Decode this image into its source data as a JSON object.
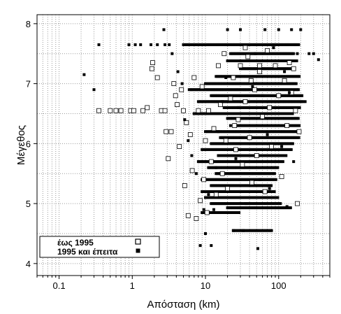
{
  "chart_data": {
    "type": "scatter",
    "title": "",
    "xlabel": "Απόσταση (km)",
    "ylabel": "Μέγεθος",
    "xscale": "log",
    "xlim": [
      0.05,
      500
    ],
    "ylim": [
      3.8,
      8.15
    ],
    "xticks": [
      {
        "value": 0.1,
        "label": "0.1"
      },
      {
        "value": 1,
        "label": "1"
      },
      {
        "value": 10,
        "label": "10"
      },
      {
        "value": 100,
        "label": "100"
      }
    ],
    "yticks": [
      {
        "value": 4,
        "label": "4"
      },
      {
        "value": 5,
        "label": "5"
      },
      {
        "value": 6,
        "label": "6"
      },
      {
        "value": 7,
        "label": "7"
      },
      {
        "value": 8,
        "label": "8"
      }
    ],
    "grid": true,
    "legend_position": "bottom-left",
    "series": [
      {
        "name": "έως 1995",
        "marker": "open-square",
        "color": "#000000",
        "points": [
          [
            0.35,
            6.55
          ],
          [
            0.5,
            6.55
          ],
          [
            0.6,
            6.55
          ],
          [
            0.7,
            6.55
          ],
          [
            0.95,
            6.55
          ],
          [
            1.05,
            6.55
          ],
          [
            1.4,
            6.55
          ],
          [
            1.6,
            6.6
          ],
          [
            1.85,
            7.25
          ],
          [
            1.9,
            7.35
          ],
          [
            2.2,
            7.1
          ],
          [
            2.5,
            6.55
          ],
          [
            2.8,
            6.55
          ],
          [
            2.9,
            6.2
          ],
          [
            3.1,
            5.75
          ],
          [
            3.4,
            6.2
          ],
          [
            3.7,
            7.0
          ],
          [
            3.9,
            6.8
          ],
          [
            4.1,
            6.65
          ],
          [
            4.4,
            5.95
          ],
          [
            4.7,
            6.9
          ],
          [
            5.0,
            6.55
          ],
          [
            5.2,
            5.3
          ],
          [
            5.5,
            6.35
          ],
          [
            5.8,
            4.8
          ],
          [
            6.2,
            6.15
          ],
          [
            6.6,
            5.55
          ],
          [
            7.0,
            7.1
          ],
          [
            7.5,
            4.75
          ],
          [
            8.0,
            6.55
          ],
          [
            8.5,
            5.05
          ],
          [
            9.0,
            6.95
          ],
          [
            9.5,
            5.4
          ],
          [
            10.0,
            6.05
          ],
          [
            10.5,
            4.85
          ],
          [
            11.0,
            6.55
          ],
          [
            12.0,
            5.7
          ],
          [
            13.0,
            6.25
          ],
          [
            14.0,
            5.15
          ],
          [
            15.0,
            7.3
          ],
          [
            16.0,
            6.65
          ],
          [
            17.0,
            5.5
          ],
          [
            18.0,
            7.5
          ],
          [
            19.0,
            6.05
          ],
          [
            20.0,
            5.25
          ],
          [
            22.0,
            6.75
          ],
          [
            24.0,
            7.1
          ],
          [
            26.0,
            5.9
          ],
          [
            28.0,
            6.4
          ],
          [
            30.0,
            7.3
          ],
          [
            32.0,
            5.65
          ],
          [
            35.0,
            6.7
          ],
          [
            38.0,
            7.45
          ],
          [
            40.0,
            6.1
          ],
          [
            43.0,
            5.35
          ],
          [
            47.0,
            6.9
          ],
          [
            50.0,
            5.8
          ],
          [
            55.0,
            7.2
          ],
          [
            60.0,
            6.45
          ],
          [
            65.0,
            5.2
          ],
          [
            70.0,
            7.55
          ],
          [
            75.0,
            6.6
          ],
          [
            80.0,
            5.95
          ],
          [
            90.0,
            7.3
          ],
          [
            100.0,
            6.8
          ],
          [
            110.0,
            5.45
          ],
          [
            120.0,
            7.05
          ],
          [
            130.0,
            6.3
          ],
          [
            140.0,
            7.35
          ],
          [
            150.0,
            6.85
          ],
          [
            160.0,
            7.25
          ],
          [
            170.0,
            6.55
          ],
          [
            180.0,
            5.0
          ],
          [
            190.0,
            6.2
          ],
          [
            35.0,
            7.6
          ],
          [
            42.0,
            7.05
          ],
          [
            55.0,
            7.3
          ],
          [
            25.0,
            6.3
          ]
        ]
      },
      {
        "name": "1995 και έπειτα",
        "marker": "filled-square",
        "color": "#000000",
        "points": [
          [
            0.22,
            7.15
          ],
          [
            0.3,
            6.9
          ],
          [
            0.35,
            7.65
          ],
          [
            0.9,
            7.65
          ],
          [
            1.1,
            7.65
          ],
          [
            1.3,
            7.65
          ],
          [
            1.8,
            7.65
          ],
          [
            2.2,
            7.65
          ],
          [
            2.8,
            7.65
          ],
          [
            3.2,
            7.65
          ],
          [
            2.7,
            7.9
          ],
          [
            3.5,
            7.5
          ],
          [
            4.2,
            7.2
          ],
          [
            4.8,
            7.0
          ],
          [
            5.2,
            6.4
          ],
          [
            5.8,
            6.05
          ],
          [
            6.5,
            5.8
          ],
          [
            7.5,
            5.5
          ],
          [
            8.5,
            4.3
          ],
          [
            9.5,
            4.9
          ],
          [
            10.0,
            4.5
          ],
          [
            11.0,
            5.15
          ],
          [
            12.0,
            4.3
          ],
          [
            13.0,
            4.9
          ],
          [
            14.0,
            5.6
          ],
          [
            15.0,
            6.2
          ],
          [
            17.0,
            6.7
          ],
          [
            19.0,
            7.1
          ],
          [
            20.0,
            7.9
          ],
          [
            22.0,
            6.3
          ],
          [
            24.0,
            4.55
          ],
          [
            26.0,
            5.75
          ],
          [
            28.0,
            6.6
          ],
          [
            30.0,
            7.9
          ],
          [
            33.0,
            4.55
          ],
          [
            36.0,
            5.0
          ],
          [
            40.0,
            6.2
          ],
          [
            44.0,
            6.95
          ],
          [
            48.0,
            7.5
          ],
          [
            52.0,
            4.25
          ],
          [
            56.0,
            5.4
          ],
          [
            60.0,
            6.8
          ],
          [
            65.0,
            7.9
          ],
          [
            70.0,
            6.15
          ],
          [
            75.0,
            5.25
          ],
          [
            80.0,
            4.55
          ],
          [
            85.0,
            7.6
          ],
          [
            90.0,
            6.6
          ],
          [
            100.0,
            7.9
          ],
          [
            110.0,
            5.95
          ],
          [
            120.0,
            7.2
          ],
          [
            130.0,
            4.95
          ],
          [
            140.0,
            6.85
          ],
          [
            150.0,
            7.9
          ],
          [
            160.0,
            5.7
          ],
          [
            180.0,
            7.5
          ],
          [
            200.0,
            7.9
          ],
          [
            230.0,
            6.7
          ],
          [
            260.0,
            7.5
          ],
          [
            300.0,
            7.5
          ],
          [
            350.0,
            7.4
          ]
        ]
      }
    ],
    "bands": {
      "series_index": 1,
      "rows": [
        {
          "y": 7.65,
          "x_from": 5,
          "x_to": 190
        },
        {
          "y": 7.5,
          "x_from": 22,
          "x_to": 160
        },
        {
          "y": 7.38,
          "x_from": 20,
          "x_to": 180
        },
        {
          "y": 7.25,
          "x_from": 30,
          "x_to": 170
        },
        {
          "y": 7.12,
          "x_from": 14,
          "x_to": 200
        },
        {
          "y": 7.0,
          "x_from": 10,
          "x_to": 180
        },
        {
          "y": 6.9,
          "x_from": 6,
          "x_to": 190
        },
        {
          "y": 6.8,
          "x_from": 12,
          "x_to": 210
        },
        {
          "y": 6.7,
          "x_from": 8,
          "x_to": 220
        },
        {
          "y": 6.6,
          "x_from": 18,
          "x_to": 200
        },
        {
          "y": 6.5,
          "x_from": 7,
          "x_to": 160
        },
        {
          "y": 6.42,
          "x_from": 20,
          "x_to": 190
        },
        {
          "y": 6.3,
          "x_from": 25,
          "x_to": 200
        },
        {
          "y": 6.2,
          "x_from": 10,
          "x_to": 200
        },
        {
          "y": 6.1,
          "x_from": 16,
          "x_to": 190
        },
        {
          "y": 6.0,
          "x_from": 12,
          "x_to": 160
        },
        {
          "y": 5.9,
          "x_from": 9,
          "x_to": 150
        },
        {
          "y": 5.8,
          "x_from": 15,
          "x_to": 130
        },
        {
          "y": 5.7,
          "x_from": 8,
          "x_to": 120
        },
        {
          "y": 5.6,
          "x_from": 11,
          "x_to": 100
        },
        {
          "y": 5.5,
          "x_from": 14,
          "x_to": 90
        },
        {
          "y": 5.4,
          "x_from": 9,
          "x_to": 95
        },
        {
          "y": 5.3,
          "x_from": 12,
          "x_to": 80
        },
        {
          "y": 5.2,
          "x_from": 9,
          "x_to": 90
        },
        {
          "y": 5.1,
          "x_from": 10,
          "x_to": 100
        },
        {
          "y": 5.0,
          "x_from": 12,
          "x_to": 110
        },
        {
          "y": 4.93,
          "x_from": 20,
          "x_to": 150
        },
        {
          "y": 4.85,
          "x_from": 9,
          "x_to": 30
        },
        {
          "y": 4.55,
          "x_from": 24,
          "x_to": 80
        }
      ]
    }
  }
}
